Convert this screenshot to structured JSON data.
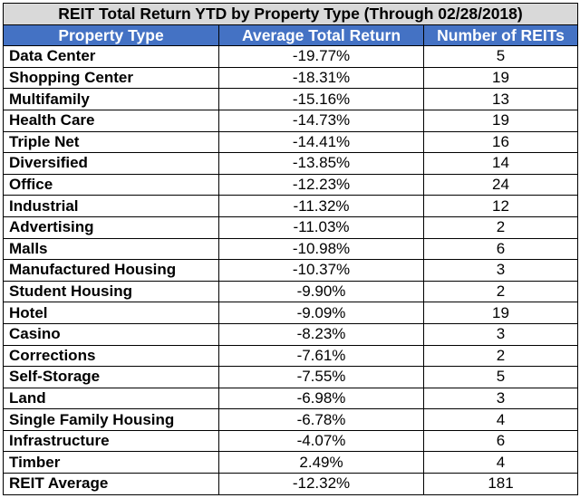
{
  "table": {
    "title": "REIT Total Return YTD by Property Type (Through 02/28/2018)",
    "columns": [
      "Property Type",
      "Average Total Return",
      "Number of REITs"
    ],
    "header_color": "#4472c4",
    "title_bg_color": "#d9d9d9",
    "rows": [
      {
        "type": "Data Center",
        "return": "-19.77%",
        "count": "5"
      },
      {
        "type": "Shopping Center",
        "return": "-18.31%",
        "count": "19"
      },
      {
        "type": "Multifamily",
        "return": "-15.16%",
        "count": "13"
      },
      {
        "type": "Health Care",
        "return": "-14.73%",
        "count": "19"
      },
      {
        "type": "Triple Net",
        "return": "-14.41%",
        "count": "16"
      },
      {
        "type": "Diversified",
        "return": "-13.85%",
        "count": "14"
      },
      {
        "type": "Office",
        "return": "-12.23%",
        "count": "24"
      },
      {
        "type": "Industrial",
        "return": "-11.32%",
        "count": "12"
      },
      {
        "type": "Advertising",
        "return": "-11.03%",
        "count": "2"
      },
      {
        "type": "Malls",
        "return": "-10.98%",
        "count": "6"
      },
      {
        "type": "Manufactured Housing",
        "return": "-10.37%",
        "count": "3"
      },
      {
        "type": "Student Housing",
        "return": "-9.90%",
        "count": "2"
      },
      {
        "type": "Hotel",
        "return": "-9.09%",
        "count": "19"
      },
      {
        "type": "Casino",
        "return": "-8.23%",
        "count": "3"
      },
      {
        "type": "Corrections",
        "return": "-7.61%",
        "count": "2"
      },
      {
        "type": "Self-Storage",
        "return": "-7.55%",
        "count": "5"
      },
      {
        "type": "Land",
        "return": "-6.98%",
        "count": "3"
      },
      {
        "type": "Single Family Housing",
        "return": "-6.78%",
        "count": "4"
      },
      {
        "type": "Infrastructure",
        "return": "-4.07%",
        "count": "6"
      },
      {
        "type": "Timber",
        "return": "2.49%",
        "count": "4"
      },
      {
        "type": "REIT Average",
        "return": "-12.32%",
        "count": "181"
      }
    ]
  }
}
